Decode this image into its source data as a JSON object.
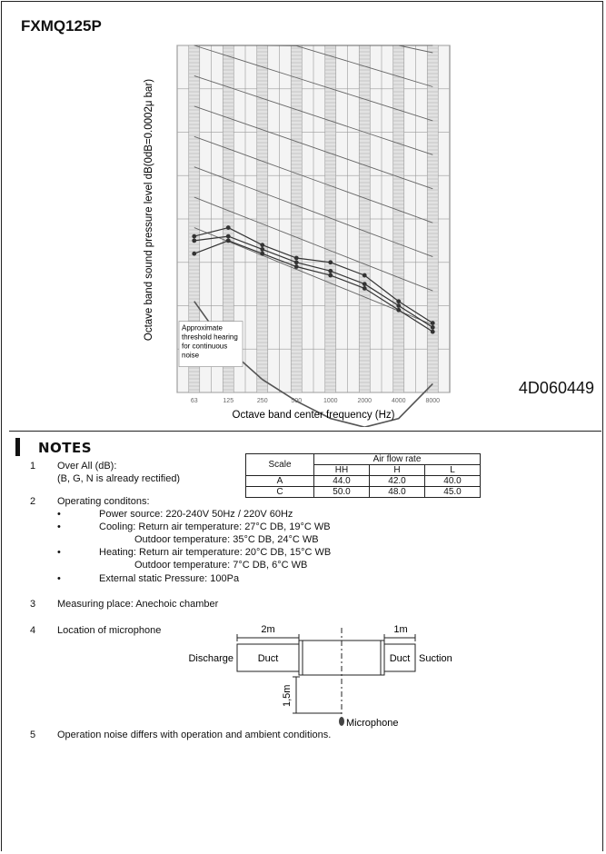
{
  "model": "FXMQ125P",
  "doc_number": "4D060449",
  "chart_data": {
    "type": "line",
    "xlabel": "Octave band center frequency (Hz)",
    "ylabel": "Octave band sound pressure level   dB(0dB=0.0002μ bar)",
    "categories": [
      "63",
      "125",
      "250",
      "500",
      "1000",
      "2000",
      "4000",
      "8000"
    ],
    "annotation": [
      "Approximate",
      "threshold hearing",
      "for continuous",
      "noise"
    ],
    "series": [
      {
        "values": [
          46,
          48,
          44,
          41,
          40,
          37,
          31,
          26
        ]
      },
      {
        "values": [
          45,
          46,
          43,
          40,
          38,
          35,
          30,
          25
        ]
      },
      {
        "values": [
          42,
          45,
          42,
          39,
          37,
          34,
          29,
          24
        ]
      }
    ],
    "threshold": [
      31,
      20,
      13,
      8,
      4,
      2,
      4,
      12
    ],
    "nc_curves_count": 10,
    "ylim": [
      10,
      90
    ],
    "grid": true
  },
  "notes": {
    "title": "NOTES",
    "n1": {
      "num": "1",
      "line1": "Over All (dB):",
      "line2": "(B, G, N is already rectified)"
    },
    "table": {
      "scale_header": "Scale",
      "airflow_header": "Air flow rate",
      "cols": [
        "HH",
        "H",
        "L"
      ],
      "rows": [
        {
          "scale": "A",
          "values": [
            "44.0",
            "42.0",
            "40.0"
          ]
        },
        {
          "scale": "C",
          "values": [
            "50.0",
            "48.0",
            "45.0"
          ]
        }
      ]
    },
    "n2": {
      "num": "2",
      "title": "Operating conditons:",
      "power": "Power source: 220-240V  50Hz / 220V 60Hz",
      "cooling1": "Cooling: Return air temperature: 27°C DB, 19°C WB",
      "cooling2": "Outdoor temperature: 35°C DB, 24°C WB",
      "heating1": "Heating: Return air temperature: 20°C DB, 15°C WB",
      "heating2": "Outdoor temperature: 7°C DB, 6°C WB",
      "static": "External static Pressure: 100Pa"
    },
    "n3": {
      "num": "3",
      "text": "Measuring place: Anechoic chamber"
    },
    "n4": {
      "num": "4",
      "text": "Location of microphone"
    },
    "n5": {
      "num": "5",
      "text": "Operation noise differs with operation and ambient conditions."
    }
  },
  "mic_diagram": {
    "dim_left": "2m",
    "dim_right": "1m",
    "discharge": "Discharge",
    "duct": "Duct",
    "suction": "Suction",
    "height": "1,5m",
    "microphone": "Microphone"
  }
}
